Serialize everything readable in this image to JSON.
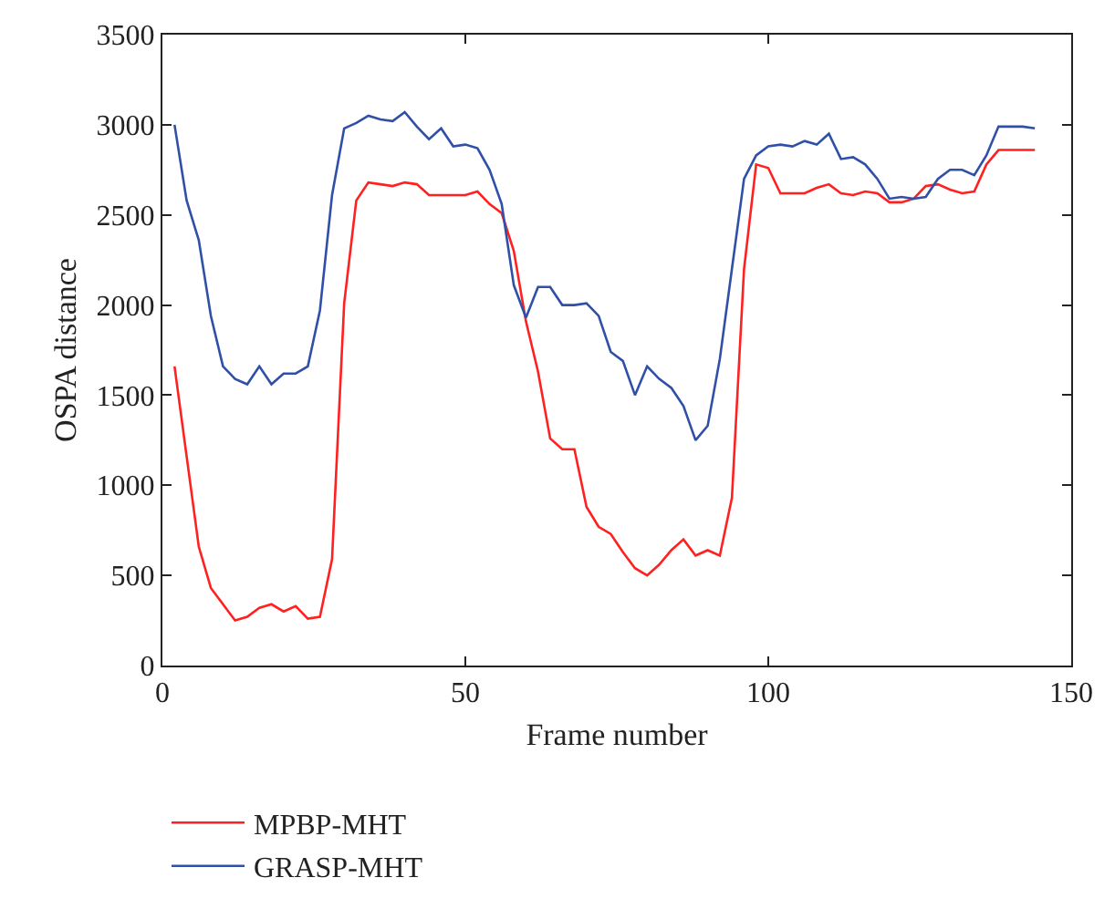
{
  "chart_data": {
    "type": "line",
    "xlabel": "Frame number",
    "ylabel": "OSPA distance",
    "x": [
      2,
      4,
      6,
      8,
      10,
      12,
      14,
      16,
      18,
      20,
      22,
      24,
      26,
      28,
      30,
      32,
      34,
      36,
      38,
      40,
      42,
      44,
      46,
      48,
      50,
      52,
      54,
      56,
      58,
      60,
      62,
      64,
      66,
      68,
      70,
      72,
      74,
      76,
      78,
      80,
      82,
      84,
      86,
      88,
      90,
      92,
      94,
      96,
      98,
      100,
      102,
      104,
      106,
      108,
      110,
      112,
      114,
      116,
      118,
      120,
      122,
      124,
      126,
      128,
      130,
      132,
      134,
      136,
      138,
      140,
      142,
      144
    ],
    "series": [
      {
        "name": "MPBP-MHT",
        "color": "#ff2020",
        "values": [
          1660,
          1160,
          660,
          430,
          340,
          250,
          270,
          320,
          340,
          300,
          330,
          260,
          270,
          590,
          2010,
          2580,
          2680,
          2670,
          2660,
          2680,
          2670,
          2610,
          2610,
          2610,
          2610,
          2630,
          2560,
          2510,
          2300,
          1910,
          1630,
          1260,
          1200,
          1200,
          880,
          770,
          730,
          630,
          540,
          500,
          560,
          640,
          700,
          610,
          640,
          610,
          930,
          2200,
          2780,
          2760,
          2620,
          2620,
          2620,
          2650,
          2670,
          2620,
          2610,
          2630,
          2620,
          2570,
          2570,
          2590,
          2660,
          2670,
          2640,
          2620,
          2630,
          2780,
          2860,
          2860,
          2860,
          2860
        ]
      },
      {
        "name": "GRASP-MHT",
        "color": "#3050a8",
        "values": [
          3000,
          2580,
          2360,
          1940,
          1660,
          1590,
          1560,
          1660,
          1560,
          1620,
          1620,
          1660,
          1970,
          2610,
          2980,
          3010,
          3050,
          3030,
          3020,
          3070,
          2990,
          2920,
          2980,
          2880,
          2890,
          2870,
          2750,
          2560,
          2110,
          1930,
          2100,
          2100,
          2000,
          2000,
          2010,
          1940,
          1740,
          1690,
          1500,
          1660,
          1590,
          1540,
          1440,
          1250,
          1330,
          1700,
          2200,
          2700,
          2830,
          2880,
          2890,
          2880,
          2910,
          2890,
          2950,
          2810,
          2820,
          2780,
          2700,
          2590,
          2600,
          2590,
          2600,
          2700,
          2750,
          2750,
          2720,
          2830,
          2990,
          2990,
          2990,
          2980
        ]
      }
    ],
    "xlim": [
      0,
      150
    ],
    "xticks": [
      0,
      50,
      100,
      150
    ],
    "ylim": [
      0,
      3500
    ],
    "yticks": [
      0,
      500,
      1000,
      1500,
      2000,
      2500,
      3000,
      3500
    ],
    "legend": "bottom",
    "line_style": "solid",
    "marker": "none"
  }
}
